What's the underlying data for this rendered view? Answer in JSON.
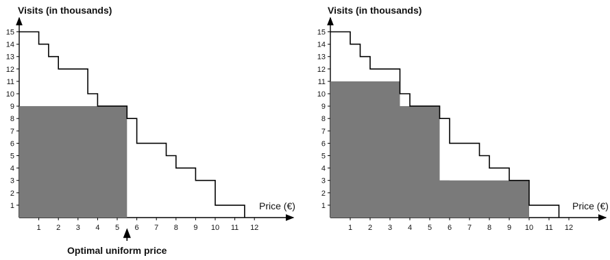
{
  "chart_data": [
    {
      "type": "area",
      "ylabel": "Visits (in thousands)",
      "xlabel": "Price (€)",
      "x_ticks": [
        1,
        2,
        3,
        4,
        5,
        6,
        7,
        8,
        9,
        10,
        11,
        12
      ],
      "y_ticks": [
        1,
        2,
        3,
        4,
        5,
        6,
        7,
        8,
        9,
        10,
        11,
        12,
        13,
        14,
        15
      ],
      "xlim": [
        0,
        12.5
      ],
      "ylim": [
        0,
        15.5
      ],
      "grid": false,
      "demand_curve": {
        "x": [
          0,
          1,
          1,
          1.5,
          1.5,
          2,
          2,
          3.5,
          3.5,
          4,
          4,
          5.5,
          5.5,
          6,
          6,
          7.5,
          7.5,
          8,
          8,
          9,
          9,
          10,
          10,
          11.5,
          11.5
        ],
        "y": [
          15,
          15,
          14,
          14,
          13,
          13,
          12,
          12,
          10,
          10,
          9,
          9,
          8,
          8,
          6,
          6,
          5,
          5,
          4,
          4,
          3,
          3,
          1,
          1,
          0
        ]
      },
      "revenue_areas": [
        {
          "price": 5.5,
          "visits": 9
        }
      ],
      "annotation": "Optimal uniform price",
      "annotation_x": 5.5,
      "fill_color": "#7a7a7a",
      "line_color": "#000000"
    },
    {
      "type": "area",
      "ylabel": "Visits (in thousands)",
      "xlabel": "Price (€)",
      "x_ticks": [
        1,
        2,
        3,
        4,
        5,
        6,
        7,
        8,
        9,
        10,
        11,
        12
      ],
      "y_ticks": [
        1,
        2,
        3,
        4,
        5,
        6,
        7,
        8,
        9,
        10,
        11,
        12,
        13,
        14,
        15
      ],
      "xlim": [
        0,
        12.5
      ],
      "ylim": [
        0,
        15.5
      ],
      "grid": false,
      "demand_curve": {
        "x": [
          0,
          1,
          1,
          1.5,
          1.5,
          2,
          2,
          3.5,
          3.5,
          4,
          4,
          5.5,
          5.5,
          6,
          6,
          7.5,
          7.5,
          8,
          8,
          9,
          9,
          10,
          10,
          11.5,
          11.5
        ],
        "y": [
          15,
          15,
          14,
          14,
          13,
          13,
          12,
          12,
          10,
          10,
          9,
          9,
          8,
          8,
          6,
          6,
          5,
          5,
          4,
          4,
          3,
          3,
          1,
          1,
          0
        ]
      },
      "revenue_areas": [
        {
          "price": 3.5,
          "visits": 11
        },
        {
          "price": 5.5,
          "visits": 9
        },
        {
          "price": 6,
          "visits": 3
        },
        {
          "price": 10,
          "visits": 3
        }
      ],
      "fill_color": "#7a7a7a",
      "line_color": "#000000"
    }
  ]
}
